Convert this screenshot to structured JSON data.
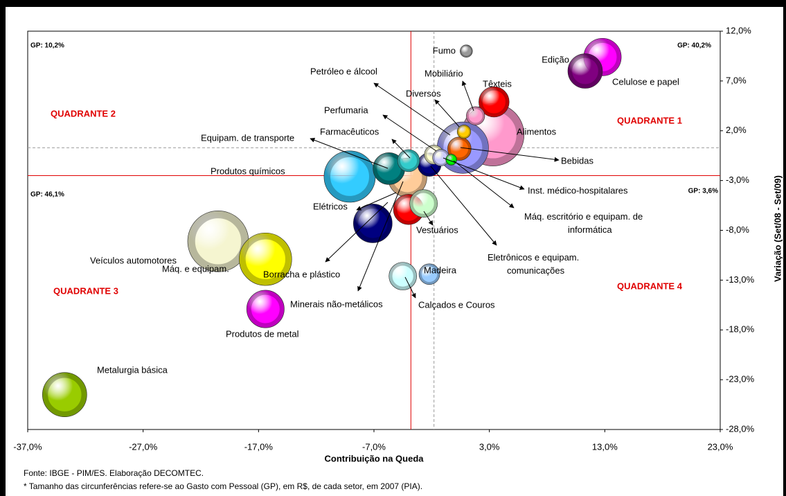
{
  "chart_data": {
    "type": "bubble",
    "x_label": "Contribuição na Queda",
    "y_label": "Variação (Set/08 - Set/09)",
    "xlim": [
      -37,
      23
    ],
    "ylim": [
      -28,
      12
    ],
    "xticks": [
      {
        "value": -37,
        "label": "-37,0%"
      },
      {
        "value": -27,
        "label": "-27,0%"
      },
      {
        "value": -17,
        "label": "-17,0%"
      },
      {
        "value": -7,
        "label": "-7,0%"
      },
      {
        "value": 3,
        "label": "3,0%"
      },
      {
        "value": 13,
        "label": "13,0%"
      },
      {
        "value": 23,
        "label": "23,0%"
      }
    ],
    "yticks": [
      {
        "value": -28,
        "label": "-28,0%"
      },
      {
        "value": -23,
        "label": "-23,0%"
      },
      {
        "value": -18,
        "label": "-18,0%"
      },
      {
        "value": -13,
        "label": "-13,0%"
      },
      {
        "value": -8,
        "label": "-8,0%"
      },
      {
        "value": -3,
        "label": "-3,0%"
      },
      {
        "value": 2,
        "label": "2,0%"
      },
      {
        "value": 7,
        "label": "7,0%"
      },
      {
        "value": 12,
        "label": "12,0%"
      }
    ],
    "grid": false,
    "reference_lines": [
      {
        "axis": "x",
        "value": -3.8,
        "color": "#e00000",
        "style": "solid"
      },
      {
        "axis": "y",
        "value": -2.5,
        "color": "#e00000",
        "style": "solid"
      },
      {
        "axis": "x",
        "value": -1.8,
        "color": "#999999",
        "style": "dashed"
      },
      {
        "axis": "y",
        "value": 0.3,
        "color": "#999999",
        "style": "dashed"
      }
    ],
    "labels": [
      "Alimentos",
      "Veículos automotores",
      "Máq. e equipam.",
      "Petróleo e álcool",
      "Produtos químicos",
      "Metalurgia básica",
      "Minerais não-metálicos",
      "Borracha e plástico",
      "Edição",
      "Produtos de metal",
      "Celulose e papel",
      "Equipam. de transporte",
      "Têxteis",
      "Elétricos",
      "Vestuários",
      "Calçados e Couros",
      "Bebidas",
      "Eletrônicos e equipam. comunicações",
      "Farmacêuticos",
      "Madeira",
      "Perfumaria",
      "Mobiliário",
      "Inst. médico-hospitalares",
      "Diversos",
      "Fumo",
      "Máq. escritório e equipam. de informática"
    ],
    "x": [
      3.3,
      -20.5,
      -16.4,
      0.7,
      -9.1,
      -33.8,
      -4.1,
      -7.1,
      12.8,
      -16.4,
      11.3,
      -5.7,
      3.4,
      -4.0,
      -2.7,
      -4.5,
      0.4,
      -2.2,
      -4.0,
      -2.2,
      -1.8,
      1.8,
      -1.2,
      0.8,
      1.0,
      -0.3
    ],
    "values": [
      1.6,
      -9.1,
      -10.9,
      0.3,
      -2.6,
      -24.5,
      -2.7,
      -7.3,
      9.4,
      -15.9,
      8.0,
      -1.8,
      4.9,
      -5.9,
      -5.3,
      -12.6,
      0.2,
      -1.4,
      -1.0,
      -12.4,
      -0.4,
      3.5,
      -0.7,
      1.9,
      10.0,
      -0.9
    ],
    "sizes": [
      127,
      121,
      90,
      86,
      86,
      64,
      49,
      49,
      46,
      46,
      39,
      33,
      30,
      30,
      25,
      25,
      18,
      18,
      16,
      14,
      12,
      11,
      9,
      6,
      5,
      4
    ],
    "colors": [
      "#ff99cc",
      "#f5f5d0",
      "#ffff00",
      "#9999ff",
      "#33ccff",
      "#99cc00",
      "#ffcc99",
      "#000080",
      "#ff00ff",
      "#ff00ff",
      "#800080",
      "#008080",
      "#ff0000",
      "#ff0000",
      "#ccffcc",
      "#ccffff",
      "#ff6600",
      "#000080",
      "#33cccc",
      "#99ccff",
      "#ffffcc",
      "#ff99cc",
      "#ccccff",
      "#ffcc00",
      "#999999",
      "#00ff00"
    ],
    "annotations": [
      "QUADRANTE 1",
      "QUADRANTE 2",
      "QUADRANTE 3",
      "QUADRANTE 4",
      "GP: 40,2%",
      "GP: 10,2%",
      "GP: 46,1%",
      "GP: 3,6%"
    ],
    "notes": [
      "Fonte: IBGE - PIM/ES. Elaboração DECOMTEC.",
      "* Tamanho das circunferências refere-se ao Gasto com Pessoal (GP), em R$,  de cada setor, em 2007 (PIA)."
    ]
  }
}
